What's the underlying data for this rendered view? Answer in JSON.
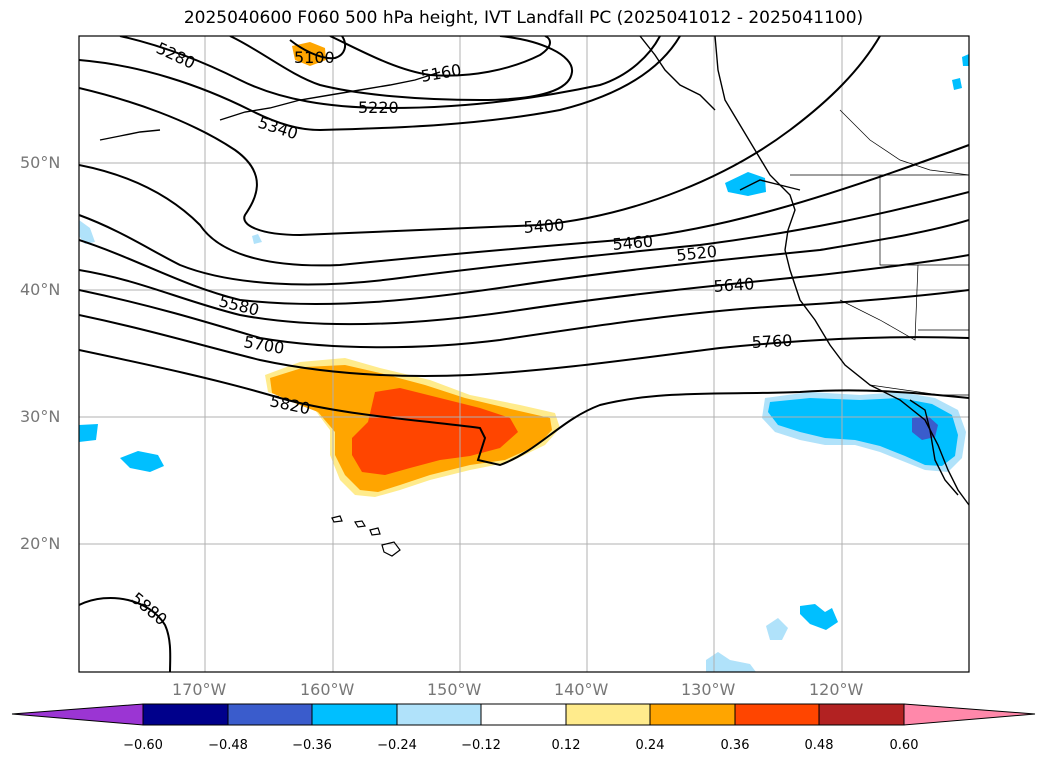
{
  "title": "2025040600 F060 500 hPa height, IVT Landfall PC (2025041012 - 2025041100)",
  "lat_labels": [
    "50°N",
    "40°N",
    "30°N",
    "20°N"
  ],
  "lon_labels": [
    "170°W",
    "160°W",
    "150°W",
    "140°W",
    "130°W",
    "120°W"
  ],
  "contour_labels": [
    "5100",
    "5160",
    "5220",
    "5280",
    "5340",
    "5400",
    "5460",
    "5520",
    "5580",
    "5640",
    "5700",
    "5760",
    "5820",
    "5880"
  ],
  "colorbar": {
    "ticks": [
      "−0.60",
      "−0.48",
      "−0.36",
      "−0.24",
      "−0.12",
      "0.12",
      "0.24",
      "0.36",
      "0.48",
      "0.60"
    ],
    "colors": [
      "#9b35d3",
      "#00008b",
      "#3a5ccc",
      "#00bfff",
      "#b0e2fa",
      "#ffffff",
      "#ffeb8c",
      "#ffa500",
      "#ff4500",
      "#b22222",
      "#ff88aa"
    ]
  }
}
